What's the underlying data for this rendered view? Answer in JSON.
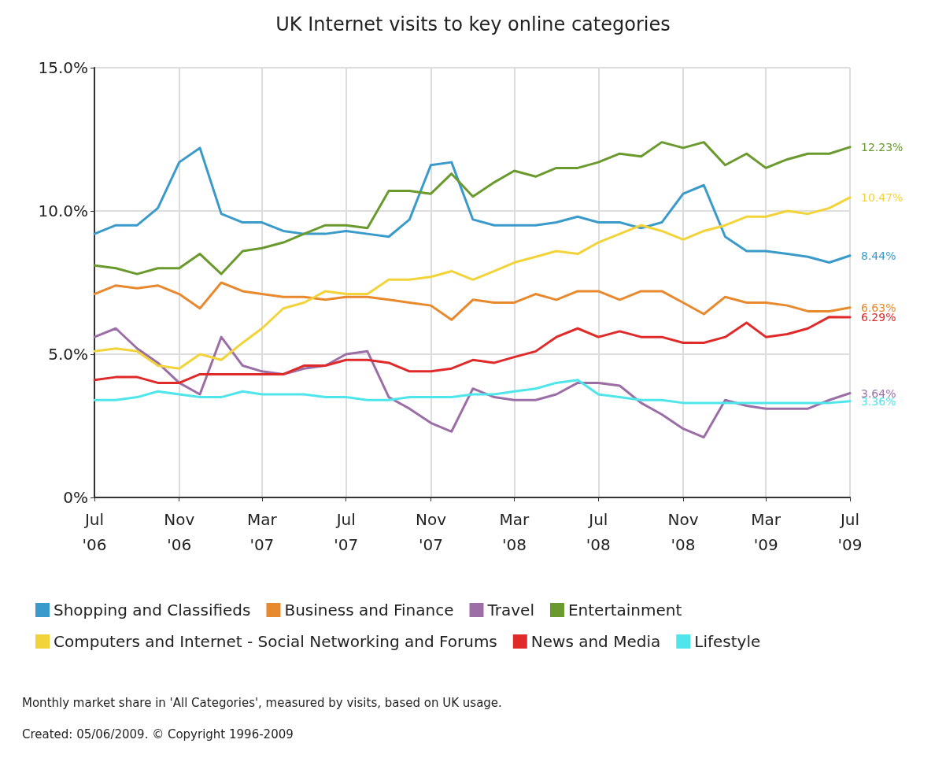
{
  "chart_data": {
    "type": "line",
    "title": "UK Internet visits to key online categories",
    "x": [
      "2006-07",
      "2006-08",
      "2006-09",
      "2006-10",
      "2006-11",
      "2006-12",
      "2007-01",
      "2007-02",
      "2007-03",
      "2007-04",
      "2007-05",
      "2007-06",
      "2007-07",
      "2007-08",
      "2007-09",
      "2007-10",
      "2007-11",
      "2007-12",
      "2008-01",
      "2008-02",
      "2008-03",
      "2008-04",
      "2008-05",
      "2008-06",
      "2008-07",
      "2008-08",
      "2008-09",
      "2008-10",
      "2008-11",
      "2008-12",
      "2009-01",
      "2009-02",
      "2009-03",
      "2009-04",
      "2009-05",
      "2009-06",
      "2009-07"
    ],
    "series": [
      {
        "name": "Shopping and Classifieds",
        "color": "#3a9ac9",
        "values": [
          9.2,
          9.5,
          9.5,
          10.1,
          11.7,
          12.2,
          9.9,
          9.6,
          9.6,
          9.3,
          9.2,
          9.2,
          9.3,
          9.2,
          9.1,
          9.7,
          11.6,
          11.7,
          9.7,
          9.5,
          9.5,
          9.5,
          9.6,
          9.8,
          9.6,
          9.6,
          9.4,
          9.6,
          10.6,
          10.9,
          9.1,
          8.6,
          8.6,
          8.5,
          8.4,
          8.2,
          8.44
        ],
        "value_labels": [
          null,
          null,
          null,
          null,
          null,
          null,
          null,
          null,
          null,
          null,
          null,
          null,
          null,
          null,
          null,
          null,
          null,
          null,
          null,
          null,
          null,
          null,
          null,
          null,
          null,
          null,
          null,
          null,
          null,
          null,
          null,
          null,
          null,
          null,
          null,
          null,
          "8.44%"
        ]
      },
      {
        "name": "Business and Finance",
        "color": "#e8892e",
        "values": [
          7.1,
          7.4,
          7.3,
          7.4,
          7.1,
          6.6,
          7.5,
          7.2,
          7.1,
          7.0,
          7.0,
          6.9,
          7.0,
          7.0,
          6.9,
          6.8,
          6.7,
          6.2,
          6.9,
          6.8,
          6.8,
          7.1,
          6.9,
          7.2,
          7.2,
          6.9,
          7.2,
          7.2,
          6.8,
          6.4,
          7.0,
          6.8,
          6.8,
          6.7,
          6.5,
          6.5,
          6.63
        ],
        "value_labels": [
          null,
          null,
          null,
          null,
          null,
          null,
          null,
          null,
          null,
          null,
          null,
          null,
          null,
          null,
          null,
          null,
          null,
          null,
          null,
          null,
          null,
          null,
          null,
          null,
          null,
          null,
          null,
          null,
          null,
          null,
          null,
          null,
          null,
          null,
          null,
          null,
          "6.63%"
        ]
      },
      {
        "name": "Travel",
        "color": "#9b6fa6",
        "values": [
          5.6,
          5.9,
          5.2,
          4.7,
          4.0,
          3.6,
          5.6,
          4.6,
          4.4,
          4.3,
          4.5,
          4.6,
          5.0,
          5.1,
          3.5,
          3.1,
          2.6,
          2.3,
          3.8,
          3.5,
          3.4,
          3.4,
          3.6,
          4.0,
          4.0,
          3.9,
          3.3,
          2.9,
          2.4,
          2.1,
          3.4,
          3.2,
          3.1,
          3.1,
          3.1,
          3.4,
          3.64
        ],
        "value_labels": [
          null,
          null,
          null,
          null,
          null,
          null,
          null,
          null,
          null,
          null,
          null,
          null,
          null,
          null,
          null,
          null,
          null,
          null,
          null,
          null,
          null,
          null,
          null,
          null,
          null,
          null,
          null,
          null,
          null,
          null,
          null,
          null,
          null,
          null,
          null,
          null,
          "3.64%"
        ]
      },
      {
        "name": "Entertainment",
        "color": "#6a9a2e",
        "values": [
          8.1,
          8.0,
          7.8,
          8.0,
          8.0,
          8.5,
          7.8,
          8.6,
          8.7,
          8.9,
          9.2,
          9.5,
          9.5,
          9.4,
          10.7,
          10.7,
          10.6,
          11.3,
          10.5,
          11.0,
          11.4,
          11.2,
          11.5,
          11.5,
          11.7,
          12.0,
          11.9,
          12.4,
          12.2,
          12.4,
          11.6,
          12.0,
          11.5,
          11.8,
          12.0,
          12.0,
          12.23
        ],
        "value_labels": [
          null,
          null,
          null,
          null,
          null,
          null,
          null,
          null,
          null,
          null,
          null,
          null,
          null,
          null,
          null,
          null,
          null,
          null,
          null,
          null,
          null,
          null,
          null,
          null,
          null,
          null,
          null,
          null,
          null,
          null,
          null,
          null,
          null,
          null,
          null,
          null,
          "12.23%"
        ]
      },
      {
        "name": "Computers and Internet - Social Networking and Forums",
        "color": "#f2d43a",
        "values": [
          5.1,
          5.2,
          5.1,
          4.6,
          4.5,
          5.0,
          4.8,
          5.4,
          5.9,
          6.6,
          6.8,
          7.2,
          7.1,
          7.1,
          7.6,
          7.6,
          7.7,
          7.9,
          7.6,
          7.9,
          8.2,
          8.4,
          8.6,
          8.5,
          8.9,
          9.2,
          9.5,
          9.3,
          9.0,
          9.3,
          9.5,
          9.8,
          9.8,
          10.0,
          9.9,
          10.1,
          10.47
        ],
        "value_labels": [
          null,
          null,
          null,
          null,
          null,
          null,
          null,
          null,
          null,
          null,
          null,
          null,
          null,
          null,
          null,
          null,
          null,
          null,
          null,
          null,
          null,
          null,
          null,
          null,
          null,
          null,
          null,
          null,
          null,
          null,
          null,
          null,
          null,
          null,
          null,
          null,
          "10.47%"
        ]
      },
      {
        "name": "News and Media",
        "color": "#e02a2a",
        "values": [
          4.1,
          4.2,
          4.2,
          4.0,
          4.0,
          4.3,
          4.3,
          4.3,
          4.3,
          4.3,
          4.6,
          4.6,
          4.8,
          4.8,
          4.7,
          4.4,
          4.4,
          4.5,
          4.8,
          4.7,
          4.9,
          5.1,
          5.6,
          5.9,
          5.6,
          5.8,
          5.6,
          5.6,
          5.4,
          5.4,
          5.6,
          6.1,
          5.6,
          5.7,
          5.9,
          6.3,
          6.29
        ],
        "value_labels": [
          null,
          null,
          null,
          null,
          null,
          null,
          null,
          null,
          null,
          null,
          null,
          null,
          null,
          null,
          null,
          null,
          null,
          null,
          null,
          null,
          null,
          null,
          null,
          null,
          null,
          null,
          null,
          null,
          null,
          null,
          null,
          null,
          null,
          null,
          null,
          null,
          "6.29%"
        ]
      },
      {
        "name": "Lifestyle",
        "color": "#4ee6ea",
        "values": [
          3.4,
          3.4,
          3.5,
          3.7,
          3.6,
          3.5,
          3.5,
          3.7,
          3.6,
          3.6,
          3.6,
          3.5,
          3.5,
          3.4,
          3.4,
          3.5,
          3.5,
          3.5,
          3.6,
          3.6,
          3.7,
          3.8,
          4.0,
          4.1,
          3.6,
          3.5,
          3.4,
          3.4,
          3.3,
          3.3,
          3.3,
          3.3,
          3.3,
          3.3,
          3.3,
          3.3,
          3.36
        ],
        "value_labels": [
          null,
          null,
          null,
          null,
          null,
          null,
          null,
          null,
          null,
          null,
          null,
          null,
          null,
          null,
          null,
          null,
          null,
          null,
          null,
          null,
          null,
          null,
          null,
          null,
          null,
          null,
          null,
          null,
          null,
          null,
          null,
          null,
          null,
          null,
          null,
          null,
          "3.36%"
        ]
      }
    ],
    "xlim": [
      "2006-07",
      "2009-07"
    ],
    "xticks": [
      {
        "value": "2006-07",
        "label": "Jul\n'06"
      },
      {
        "value": "2006-11",
        "label": "Nov\n'06"
      },
      {
        "value": "2007-03",
        "label": "Mar\n'07"
      },
      {
        "value": "2007-07",
        "label": "Jul\n'07"
      },
      {
        "value": "2007-11",
        "label": "Nov\n'07"
      },
      {
        "value": "2008-03",
        "label": "Mar\n'08"
      },
      {
        "value": "2008-07",
        "label": "Jul\n'08"
      },
      {
        "value": "2008-11",
        "label": "Nov\n'08"
      },
      {
        "value": "2009-03",
        "label": "Mar\n'09"
      },
      {
        "value": "2009-07",
        "label": "Jul\n'09"
      }
    ],
    "ylim": [
      0,
      15
    ],
    "yticks": [
      {
        "value": 0,
        "label": "0%"
      },
      {
        "value": 5,
        "label": "5.0%"
      },
      {
        "value": 10,
        "label": "10.0%"
      },
      {
        "value": 15,
        "label": "15.0%"
      }
    ],
    "grid": true,
    "legend": "bottom",
    "marker": "none",
    "line_style": "solid",
    "annotations": [
      "Monthly market share in 'All Categories', measured by visits, based on UK usage.",
      "Created: 05/06/2009. © Copyright 1996-2009"
    ]
  }
}
